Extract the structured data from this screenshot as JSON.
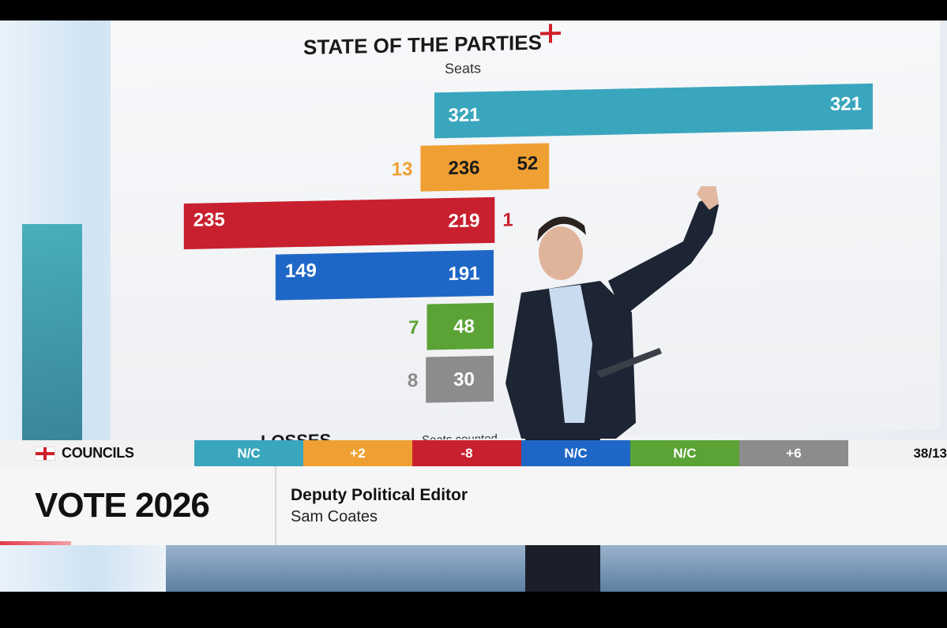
{
  "chart_data": {
    "type": "bar",
    "title": "STATE OF THE PARTIES",
    "subtitle": "Seats",
    "rows": [
      {
        "color": "#3aa6bd",
        "losses": null,
        "base": 321,
        "gains": null,
        "gains_label": "321"
      },
      {
        "color": "#f0a033",
        "losses": 13,
        "base": 236,
        "gains": 52,
        "gains_label": "52"
      },
      {
        "color": "#c8202e",
        "losses": 235,
        "base": 219,
        "gains": 1,
        "gains_label": "1"
      },
      {
        "color": "#1f67c6",
        "losses": 149,
        "base": 191,
        "gains": null,
        "gains_label": ""
      },
      {
        "color": "#5aa334",
        "losses": 7,
        "base": 48,
        "gains": null,
        "gains_label": ""
      },
      {
        "color": "#8c8c8c",
        "losses": 8,
        "base": 30,
        "gains": null,
        "gains_label": ""
      }
    ],
    "footer_left": "LOSSES",
    "footer_right": "Seats counted"
  },
  "ticker": {
    "label": "COUNCILS",
    "cells": [
      {
        "text": "N/C",
        "color": "#3aa6bd"
      },
      {
        "text": "+2",
        "color": "#f0a033"
      },
      {
        "text": "-8",
        "color": "#c8202e"
      },
      {
        "text": "N/C",
        "color": "#1f67c6"
      },
      {
        "text": "N/C",
        "color": "#5aa334"
      },
      {
        "text": "+6",
        "color": "#8c8c8c"
      }
    ],
    "count": "38/13"
  },
  "lower_third": {
    "brand": "VOTE 2026",
    "role": "Deputy Political Editor",
    "name": "Sam Coates"
  }
}
